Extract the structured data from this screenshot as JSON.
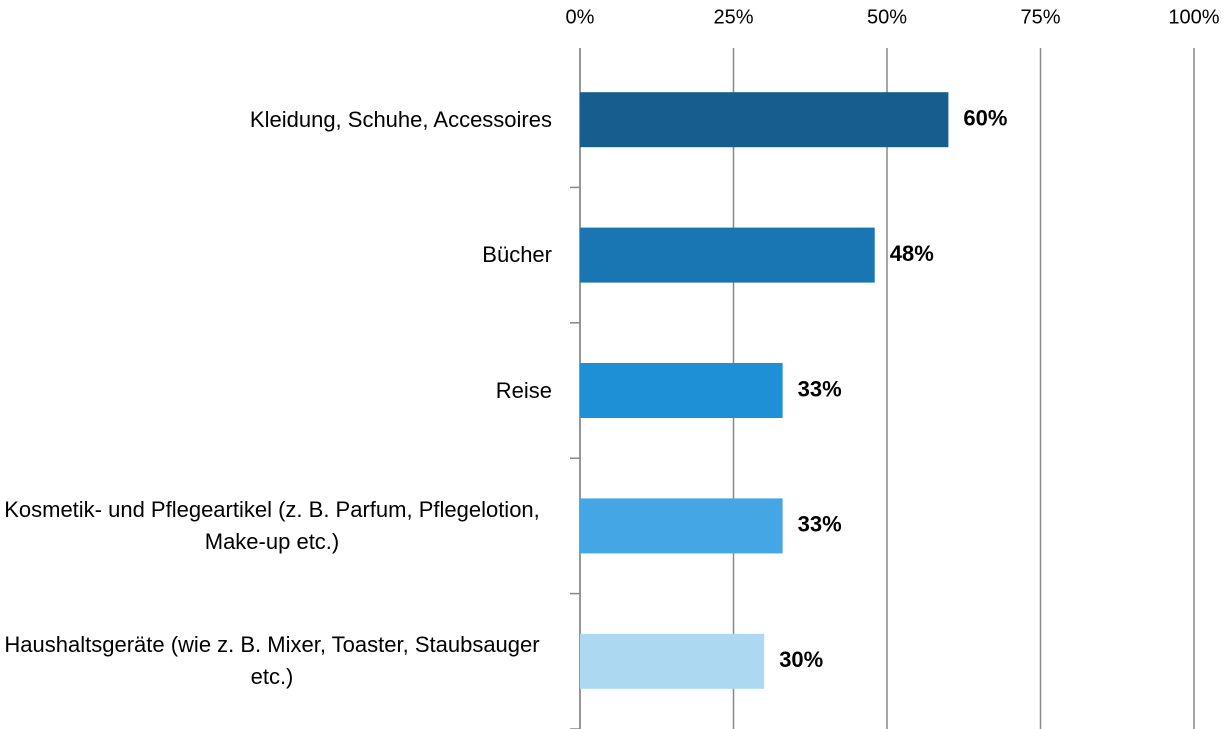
{
  "chart_data": {
    "type": "barh",
    "categories": [
      "Kleidung, Schuhe, Accessoires",
      "Bücher",
      "Reise",
      "Kosmetik- und Pflegeartikel (z. B. Parfum, Pflegelotion, Make-up etc.)",
      "Haushaltsgeräte (wie z. B. Mixer, Toaster, Staubsauger etc.)"
    ],
    "values": [
      60,
      48,
      33,
      33,
      30
    ],
    "value_labels": [
      "60%",
      "48%",
      "33%",
      "33%",
      "30%"
    ],
    "colors": [
      "#175e8e",
      "#1a75b3",
      "#1e90d6",
      "#45a6e6",
      "#acd8f1"
    ],
    "xlim": [
      0,
      100
    ],
    "xticks": [
      {
        "value": 0,
        "label": "0%"
      },
      {
        "value": 25,
        "label": "25%"
      },
      {
        "value": 50,
        "label": "50%"
      },
      {
        "value": 75,
        "label": "75%"
      },
      {
        "value": 100,
        "label": "100%"
      }
    ],
    "grid": true
  }
}
